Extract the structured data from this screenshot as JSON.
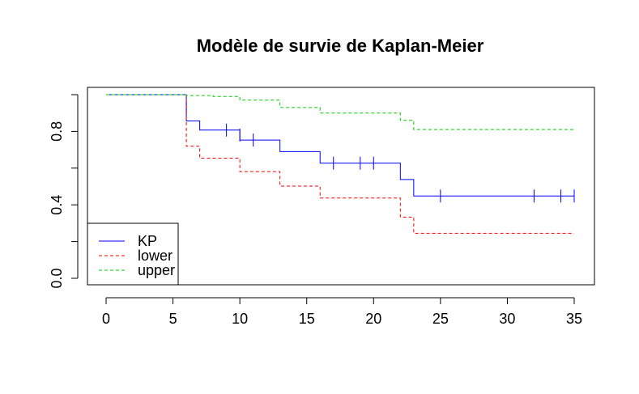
{
  "chart_data": {
    "type": "line",
    "title": "Modèle de survie de Kaplan-Meier",
    "xlabel": "",
    "ylabel": "",
    "xlim": [
      0,
      35
    ],
    "ylim": [
      0,
      1
    ],
    "x_ticks": [
      0,
      5,
      10,
      15,
      20,
      25,
      30,
      35
    ],
    "y_ticks": [
      0.0,
      0.2,
      0.4,
      0.6,
      0.8,
      1.0
    ],
    "y_tick_labels_shown": [
      "0.0",
      "0.4",
      "0.8"
    ],
    "grid": false,
    "legend_position": "bottom-left",
    "step": true,
    "series": [
      {
        "name": "KP",
        "color": "#0000ff",
        "line": "solid",
        "points": [
          [
            0,
            1.0
          ],
          [
            6,
            0.857
          ],
          [
            7,
            0.807
          ],
          [
            10,
            0.753
          ],
          [
            13,
            0.69
          ],
          [
            16,
            0.627
          ],
          [
            22,
            0.538
          ],
          [
            23,
            0.448
          ],
          [
            35,
            0.448
          ]
        ],
        "censor_marks": [
          [
            6,
            0.93
          ],
          [
            9,
            0.807
          ],
          [
            10,
            0.78
          ],
          [
            11,
            0.753
          ],
          [
            17,
            0.627
          ],
          [
            19,
            0.627
          ],
          [
            20,
            0.627
          ],
          [
            25,
            0.448
          ],
          [
            32,
            0.448
          ],
          [
            34,
            0.448
          ],
          [
            35,
            0.448
          ]
        ]
      },
      {
        "name": "lower",
        "color": "#ff0000",
        "line": "dashed",
        "points": [
          [
            0,
            1.0
          ],
          [
            6,
            0.719
          ],
          [
            7,
            0.654
          ],
          [
            10,
            0.581
          ],
          [
            13,
            0.502
          ],
          [
            16,
            0.437
          ],
          [
            22,
            0.333
          ],
          [
            23,
            0.245
          ],
          [
            35,
            0.245
          ]
        ]
      },
      {
        "name": "upper",
        "color": "#00cc00",
        "line": "dashed",
        "points": [
          [
            0,
            1.0
          ],
          [
            6,
            0.995
          ],
          [
            8,
            0.99
          ],
          [
            10,
            0.97
          ],
          [
            13,
            0.93
          ],
          [
            16,
            0.9
          ],
          [
            22,
            0.86
          ],
          [
            23,
            0.81
          ],
          [
            35,
            0.81
          ]
        ]
      }
    ]
  }
}
